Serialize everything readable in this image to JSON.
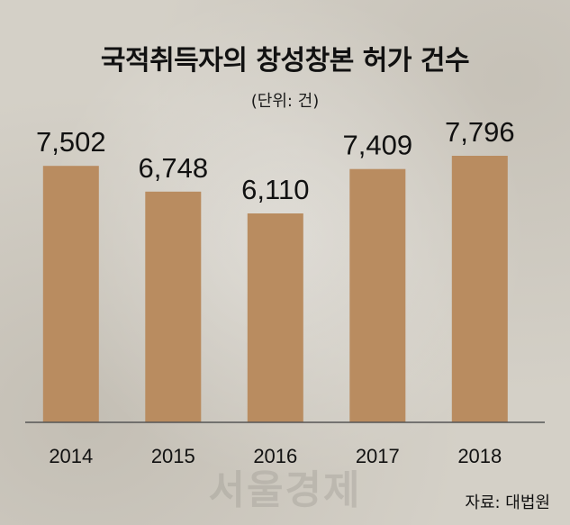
{
  "header": {
    "title": "국적취득자의 창성창본 허가 건수",
    "unit": "(단위: 건)"
  },
  "footer": {
    "source": "자료: 대법원",
    "watermark": "서울경제"
  },
  "colors": {
    "bar": "#b98c60"
  },
  "chart_data": {
    "type": "bar",
    "categories": [
      "2014",
      "2015",
      "2016",
      "2017",
      "2018"
    ],
    "values": [
      7502,
      6748,
      6110,
      7409,
      7796
    ],
    "value_labels": [
      "7,502",
      "6,748",
      "6,110",
      "7,409",
      "7,796"
    ],
    "title": "국적취득자의 창성창본 허가 건수",
    "subtitle": "(단위: 건)",
    "xlabel": "",
    "ylabel": "",
    "ylim": [
      0,
      7796
    ],
    "grid": false,
    "legend": "none"
  }
}
